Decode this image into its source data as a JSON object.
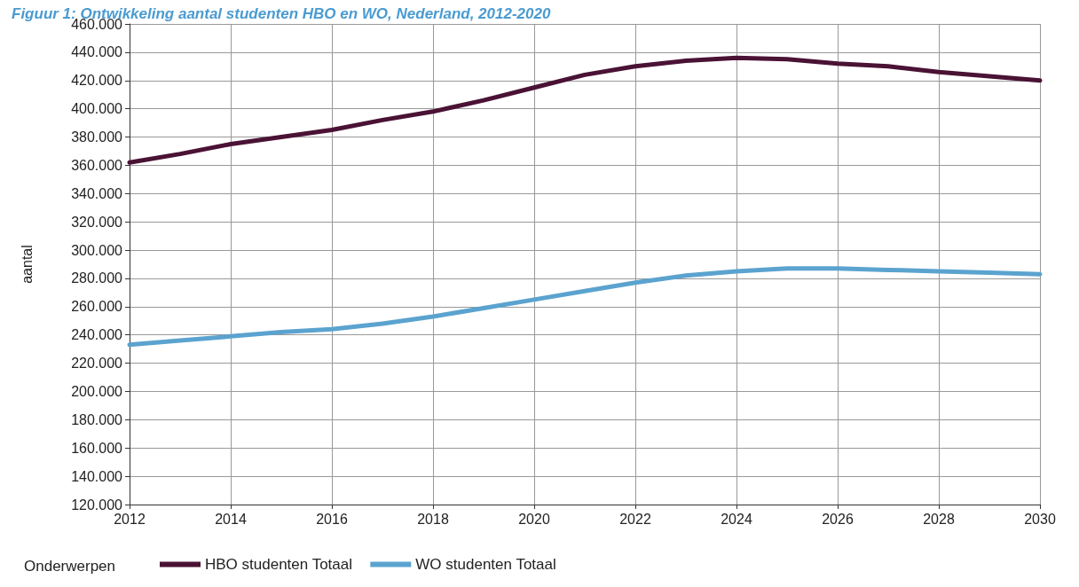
{
  "chart_data": {
    "type": "line",
    "title": "Figuur 1: Ontwikkeling aantal studenten HBO en WO, Nederland, 2012-2020",
    "ylabel": "aantal",
    "legend_title": "Onderwerpen",
    "x": [
      2012,
      2013,
      2014,
      2015,
      2016,
      2017,
      2018,
      2019,
      2020,
      2021,
      2022,
      2023,
      2024,
      2025,
      2026,
      2027,
      2028,
      2029,
      2030
    ],
    "series": [
      {
        "name": "HBO studenten Totaal",
        "color": "#4a1235",
        "values": [
          362000,
          368000,
          375000,
          380000,
          385000,
          392000,
          398000,
          406000,
          415000,
          424000,
          430000,
          434000,
          436000,
          435000,
          432000,
          430000,
          426000,
          423000,
          420000
        ]
      },
      {
        "name": "WO studenten Totaal",
        "color": "#5ba3cf",
        "values": [
          233000,
          236000,
          239000,
          242000,
          244000,
          248000,
          253000,
          259000,
          265000,
          271000,
          277000,
          282000,
          285000,
          287000,
          287000,
          286000,
          285000,
          284000,
          283000
        ]
      }
    ],
    "xlim": [
      2012,
      2030
    ],
    "xticks": [
      2012,
      2014,
      2016,
      2018,
      2020,
      2022,
      2024,
      2026,
      2028,
      2030
    ],
    "ylim": [
      120000,
      460000
    ],
    "yticks": [
      {
        "value": 120000,
        "label": "120.000"
      },
      {
        "value": 140000,
        "label": "140.000"
      },
      {
        "value": 160000,
        "label": "160.000"
      },
      {
        "value": 180000,
        "label": "180.000"
      },
      {
        "value": 200000,
        "label": "200.000"
      },
      {
        "value": 220000,
        "label": "220.000"
      },
      {
        "value": 240000,
        "label": "240.000"
      },
      {
        "value": 260000,
        "label": "260.000"
      },
      {
        "value": 280000,
        "label": "280.000"
      },
      {
        "value": 300000,
        "label": "300.000"
      },
      {
        "value": 320000,
        "label": "320.000"
      },
      {
        "value": 340000,
        "label": "340.000"
      },
      {
        "value": 360000,
        "label": "360.000"
      },
      {
        "value": 380000,
        "label": "380.000"
      },
      {
        "value": 400000,
        "label": "400.000"
      },
      {
        "value": 420000,
        "label": "420.000"
      },
      {
        "value": 440000,
        "label": "440.000"
      },
      {
        "value": 460000,
        "label": "460.000"
      }
    ],
    "grid": true,
    "legend": "bottom",
    "marker": "none",
    "line_style": "solid"
  }
}
